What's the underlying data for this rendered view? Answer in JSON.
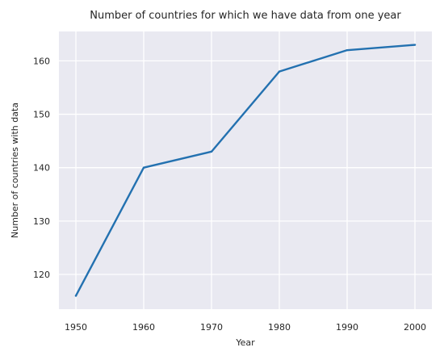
{
  "chart_data": {
    "type": "line",
    "title": "Number of countries for which we have data from one year",
    "xlabel": "Year",
    "ylabel": "Number of countries with data",
    "x": [
      1950,
      1960,
      1970,
      1980,
      1990,
      2000
    ],
    "series": [
      {
        "values": [
          116,
          140,
          143,
          158,
          162,
          163
        ],
        "color": "#2371b0"
      }
    ],
    "xticks": [
      1950,
      1960,
      1970,
      1980,
      1990,
      2000
    ],
    "yticks": [
      120,
      130,
      140,
      150,
      160
    ],
    "xlim": [
      1947.5,
      2002.5
    ],
    "ylim": [
      113.5,
      165.5
    ],
    "grid": true,
    "background": "#e9e9f1",
    "grid_color": "#ffffff"
  }
}
